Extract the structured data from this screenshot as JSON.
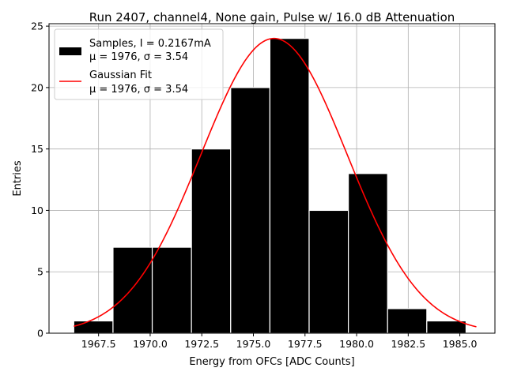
{
  "chart_data": {
    "type": "bar",
    "title": "Run 2407, channel4, None gain, Pulse w/ 16.0 dB Attenuation",
    "xlabel": "Energy from OFCs [ADC Counts]",
    "ylabel": "Entries",
    "xlim": [
      1965.1,
      1986.7
    ],
    "ylim": [
      0,
      25.2
    ],
    "xticks": [
      1967.5,
      1970.0,
      1972.5,
      1975.0,
      1977.5,
      1980.0,
      1982.5,
      1985.0
    ],
    "xtick_labels": [
      "1967.5",
      "1970.0",
      "1972.5",
      "1975.0",
      "1977.5",
      "1980.0",
      "1982.5",
      "1985.0"
    ],
    "yticks": [
      0,
      5,
      10,
      15,
      20,
      25
    ],
    "ytick_labels": [
      "0",
      "5",
      "10",
      "15",
      "20",
      "25"
    ],
    "grid": true,
    "legend_position": "top-left",
    "bins": [
      {
        "x0": 1966.3,
        "x1": 1968.2,
        "value": 1
      },
      {
        "x0": 1968.2,
        "x1": 1970.1,
        "value": 7
      },
      {
        "x0": 1970.1,
        "x1": 1972.0,
        "value": 7
      },
      {
        "x0": 1972.0,
        "x1": 1973.9,
        "value": 15
      },
      {
        "x0": 1973.9,
        "x1": 1975.8,
        "value": 20
      },
      {
        "x0": 1975.8,
        "x1": 1977.7,
        "value": 24
      },
      {
        "x0": 1977.7,
        "x1": 1979.6,
        "value": 10
      },
      {
        "x0": 1979.6,
        "x1": 1981.5,
        "value": 13
      },
      {
        "x0": 1981.5,
        "x1": 1983.4,
        "value": 2
      },
      {
        "x0": 1983.4,
        "x1": 1985.3,
        "value": 1
      }
    ],
    "fit": {
      "type": "gaussian",
      "amplitude": 24.0,
      "mu": 1976,
      "sigma": 3.54,
      "x_range": [
        1966.3,
        1985.8
      ]
    },
    "series": [
      {
        "name_line1": "Samples, I = 0.2167mA",
        "name_line2": "μ = 1976, σ = 3.54",
        "color": "#000000"
      },
      {
        "name_line1": "Gaussian Fit",
        "name_line2": "μ = 1976, σ = 3.54",
        "color": "#ff0000"
      }
    ]
  }
}
